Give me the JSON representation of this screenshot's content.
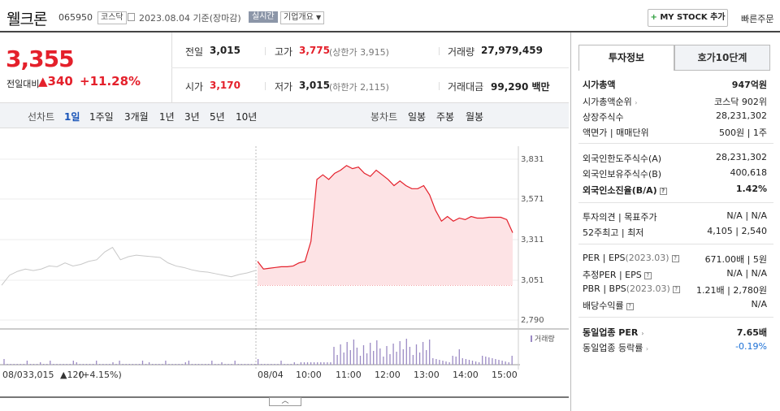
{
  "header": {
    "name": "웰크론",
    "code": "065950",
    "market": "코스닥",
    "date": "2023.08.04 기준(장마감)",
    "live": "실시간",
    "overview": "기업개요",
    "mystock": "MY STOCK 추가",
    "fast_order": "빠른주문"
  },
  "price": {
    "current": "3,355",
    "change_label": "전일대비",
    "change": "340",
    "change_pct": "+11.28%"
  },
  "stats": {
    "prev_label": "전일",
    "prev": "3,015",
    "high_label": "고가",
    "high": "3,775",
    "upper_limit": "(상한가 3,915)",
    "volume_label": "거래량",
    "volume": "27,979,459",
    "open_label": "시가",
    "open": "3,170",
    "low_label": "저가",
    "low": "3,015",
    "lower_limit": "(하한가 2,115)",
    "amount_label": "거래대금",
    "amount": "99,290 백만"
  },
  "periods": {
    "line_label": "선차트",
    "items": [
      "1일",
      "1주일",
      "3개월",
      "1년",
      "3년",
      "5년",
      "10년"
    ],
    "active": "1일",
    "candle_label": "봉차트",
    "candle_items": [
      "일봉",
      "주봉",
      "월봉"
    ]
  },
  "right_panel": {
    "tabs": [
      "투자정보",
      "호가10단계"
    ],
    "market_cap_label": "시가총액",
    "market_cap": "947억원",
    "rank_label": "시가총액순위",
    "rank": "코스닥 902위",
    "shares_label": "상장주식수",
    "shares": "28,231,302",
    "face_label": "액면가",
    "unit_label": "매매단위",
    "face": "500원",
    "unit": "1주",
    "foreign_limit_label": "외국인한도주식수(A)",
    "foreign_limit": "28,231,302",
    "foreign_hold_label": "외국인보유주식수(B)",
    "foreign_hold": "400,618",
    "foreign_ratio_label": "외국인소진율(B/A)",
    "foreign_ratio": "1.42%",
    "opinion_label": "투자의견",
    "target_label": "목표주가",
    "opinion": "N/A",
    "target": "N/A",
    "week52_label": "52주최고",
    "week52_low_label": "최저",
    "week52_high": "4,105",
    "week52_low": "2,540",
    "per_label": "PER",
    "eps_label": "EPS",
    "eps_year": "(2023.03)",
    "per": "671.00배",
    "eps": "5원",
    "est_per_label": "추정PER",
    "est_eps_label": "EPS",
    "est_per": "N/A",
    "est_eps": "N/A",
    "pbr_label": "PBR",
    "bps_label": "BPS",
    "bps_year": "(2023.03)",
    "pbr": "1.21배",
    "bps": "2,780원",
    "div_label": "배당수익률",
    "div": "N/A",
    "sector_per_label": "동일업종 PER",
    "sector_per": "7.65배",
    "sector_chg_label": "동일업종 등락률",
    "sector_chg": "-0.19%"
  },
  "chart_data": {
    "type": "line",
    "y_ticks": [
      "3,831",
      "3,571",
      "3,311",
      "3,051",
      "2,790"
    ],
    "ylim": [
      2790,
      3831
    ],
    "x_ticks": [
      "08/03",
      "08/04",
      "10:00",
      "11:00",
      "12:00",
      "13:00",
      "14:00",
      "15:00"
    ],
    "prev_close": 3015,
    "volume_legend": "거래량",
    "prev_day": {
      "date": "08/03",
      "close": "3,015",
      "change": "120",
      "change_pct": "(+4.15%)"
    },
    "series": [
      {
        "values": [
          3015,
          3080,
          3105,
          3120,
          3110,
          3120,
          3140,
          3135,
          3160,
          3140,
          3150,
          3170,
          3180,
          3230,
          3260,
          3180,
          3200,
          3210,
          3205,
          3200,
          3195,
          3160,
          3140,
          3130,
          3115,
          3105,
          3100,
          3090,
          3080,
          3070,
          3085,
          3095,
          3110
        ]
      },
      {
        "values": [
          3170,
          3120,
          3125,
          3130,
          3135,
          3135,
          3140,
          3160,
          3170,
          3300,
          3700,
          3730,
          3700,
          3740,
          3760,
          3790,
          3770,
          3780,
          3740,
          3720,
          3760,
          3730,
          3700,
          3660,
          3690,
          3660,
          3640,
          3640,
          3660,
          3600,
          3500,
          3430,
          3460,
          3430,
          3450,
          3440,
          3460,
          3450,
          3450,
          3455,
          3455,
          3455,
          3440,
          3355
        ]
      }
    ]
  },
  "colors": {
    "up": "#e4202b",
    "down": "#1a6fd6",
    "fill": "#fde3e5",
    "volume": "#9b8ac4",
    "prev_line": "#c8c8c8"
  }
}
